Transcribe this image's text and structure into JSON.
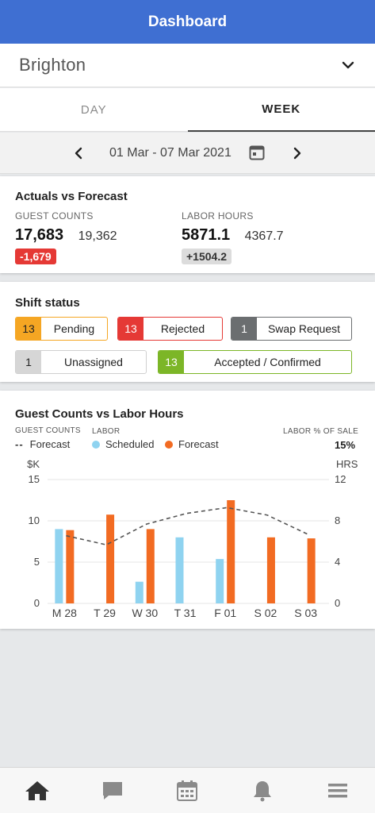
{
  "header": {
    "title": "Dashboard"
  },
  "location": {
    "name": "Brighton"
  },
  "tabs": [
    {
      "label": "DAY"
    },
    {
      "label": "WEEK"
    }
  ],
  "date_range": "01 Mar - 07 Mar 2021",
  "actuals": {
    "title": "Actuals vs Forecast",
    "guest": {
      "label": "GUEST COUNTS",
      "actual": "17,683",
      "forecast": "19,362",
      "diff": "-1,679"
    },
    "labor": {
      "label": "LABOR HOURS",
      "actual": "5871.1",
      "forecast": "4367.7",
      "diff": "+1504.2"
    }
  },
  "shift_status": {
    "title": "Shift status",
    "items": [
      {
        "count": "13",
        "label": "Pending",
        "color": "#f5a623"
      },
      {
        "count": "13",
        "label": "Rejected",
        "color": "#e53935"
      },
      {
        "count": "1",
        "label": "Swap Request",
        "color": "#6b6e70"
      },
      {
        "count": "1",
        "label": "Unassigned",
        "color": "#d6d6d6"
      },
      {
        "count": "13",
        "label": "Accepted / Confirmed",
        "color": "#7cb627"
      }
    ]
  },
  "chart_section": {
    "title": "Guest Counts vs Labor Hours",
    "guest_caption": "GUEST COUNTS",
    "labor_caption": "LABOR",
    "labor_pct_caption": "LABOR % OF SALE",
    "labor_pct_value": "15%",
    "legend_forecast_line": "Forecast",
    "legend_scheduled": "Scheduled",
    "legend_forecast": "Forecast",
    "left_unit": "$K",
    "right_unit": "HRS"
  },
  "chart_data": {
    "type": "bar",
    "categories": [
      "M 28",
      "T 29",
      "W 30",
      "T 31",
      "F 01",
      "S 02",
      "S 03"
    ],
    "series": [
      {
        "name": "Scheduled",
        "axis": "right",
        "color": "#8fd3f0",
        "values": [
          7.2,
          null,
          2.1,
          6.4,
          4.3,
          null,
          null
        ]
      },
      {
        "name": "Forecast",
        "axis": "right",
        "color": "#f26b22",
        "values": [
          7.1,
          8.6,
          7.2,
          null,
          10.0,
          6.4,
          6.3
        ]
      },
      {
        "name": "Forecast",
        "axis": "left",
        "style": "dashed",
        "color": "#555555",
        "values": [
          8.2,
          7.1,
          9.6,
          10.9,
          11.6,
          10.7,
          8.4
        ]
      }
    ],
    "left_ticks": [
      0,
      5,
      10,
      15
    ],
    "right_ticks": [
      0,
      4,
      8,
      12
    ],
    "ylim_left": [
      0,
      15
    ],
    "ylim_right": [
      0,
      12
    ],
    "grid": true
  },
  "nav": [
    {
      "icon": "home-icon",
      "color": "#333333"
    },
    {
      "icon": "chat-icon",
      "color": "#8a8a8a"
    },
    {
      "icon": "calendar-icon",
      "color": "#8a8a8a"
    },
    {
      "icon": "bell-icon",
      "color": "#8a8a8a"
    },
    {
      "icon": "menu-icon",
      "color": "#8a8a8a"
    }
  ]
}
